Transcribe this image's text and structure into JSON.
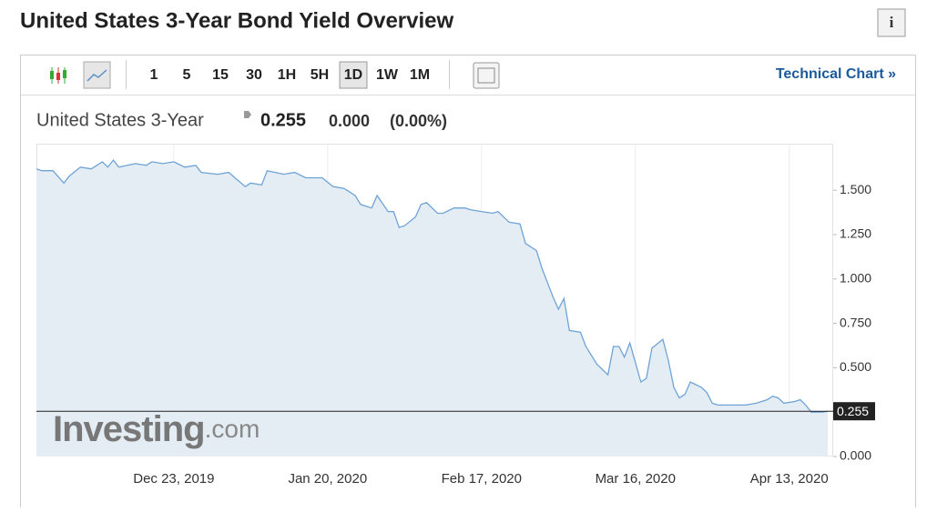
{
  "page": {
    "title": "United States 3-Year Bond Yield Overview",
    "info": "i",
    "intervals": [
      "1",
      "5",
      "15",
      "30",
      "1H",
      "5H",
      "1D",
      "1W",
      "1M"
    ],
    "active_interval": "1D",
    "link": "Technical Chart »",
    "watermark_brand": "Investing",
    "watermark_suffix": ".com"
  },
  "quote": {
    "name": "United States 3-Year",
    "price": "0.255",
    "change": "0.000",
    "change_pct": "(0.00%)"
  },
  "chart_data": {
    "type": "area-line",
    "x": [
      "2019-11-28",
      "2019-11-29",
      "2019-12-01",
      "2019-12-03",
      "2019-12-04",
      "2019-12-06",
      "2019-12-08",
      "2019-12-10",
      "2019-12-11",
      "2019-12-12",
      "2019-12-13",
      "2019-12-16",
      "2019-12-18",
      "2019-12-19",
      "2019-12-21",
      "2019-12-23",
      "2019-12-25",
      "2019-12-27",
      "2019-12-28",
      "2019-12-31",
      "2020-01-02",
      "2020-01-05",
      "2020-01-06",
      "2020-01-08",
      "2020-01-09",
      "2020-01-12",
      "2020-01-14",
      "2020-01-16",
      "2020-01-19",
      "2020-01-21",
      "2020-01-23",
      "2020-01-25",
      "2020-01-26",
      "2020-01-28",
      "2020-01-29",
      "2020-01-31",
      "2020-02-01",
      "2020-02-02",
      "2020-02-03",
      "2020-02-05",
      "2020-02-06",
      "2020-02-07",
      "2020-02-09",
      "2020-02-10",
      "2020-02-12",
      "2020-02-14",
      "2020-02-15",
      "2020-02-17",
      "2020-02-19",
      "2020-02-20",
      "2020-02-22",
      "2020-02-24",
      "2020-02-25",
      "2020-02-27",
      "2020-02-28",
      "2020-03-01",
      "2020-03-02",
      "2020-03-03",
      "2020-03-04",
      "2020-03-06",
      "2020-03-07",
      "2020-03-09",
      "2020-03-11",
      "2020-03-12",
      "2020-03-13",
      "2020-03-14",
      "2020-03-15",
      "2020-03-17",
      "2020-03-18",
      "2020-03-19",
      "2020-03-21",
      "2020-03-22",
      "2020-03-23",
      "2020-03-24",
      "2020-03-25",
      "2020-03-26",
      "2020-03-28",
      "2020-03-29",
      "2020-03-30",
      "2020-03-31",
      "2020-04-02",
      "2020-04-05",
      "2020-04-07",
      "2020-04-09",
      "2020-04-10",
      "2020-04-11",
      "2020-04-12",
      "2020-04-14",
      "2020-04-15",
      "2020-04-16",
      "2020-04-17",
      "2020-04-19",
      "2020-04-20"
    ],
    "values": [
      1.62,
      1.61,
      1.61,
      1.54,
      1.58,
      1.63,
      1.62,
      1.66,
      1.63,
      1.67,
      1.63,
      1.65,
      1.64,
      1.66,
      1.65,
      1.66,
      1.63,
      1.64,
      1.6,
      1.59,
      1.6,
      1.52,
      1.54,
      1.53,
      1.61,
      1.59,
      1.6,
      1.57,
      1.57,
      1.52,
      1.51,
      1.47,
      1.42,
      1.4,
      1.47,
      1.38,
      1.38,
      1.29,
      1.3,
      1.35,
      1.42,
      1.43,
      1.37,
      1.37,
      1.4,
      1.4,
      1.39,
      1.38,
      1.37,
      1.38,
      1.32,
      1.31,
      1.2,
      1.16,
      1.06,
      0.9,
      0.83,
      0.89,
      0.71,
      0.7,
      0.62,
      0.52,
      0.46,
      0.62,
      0.62,
      0.56,
      0.64,
      0.42,
      0.44,
      0.61,
      0.66,
      0.54,
      0.39,
      0.33,
      0.35,
      0.42,
      0.39,
      0.36,
      0.3,
      0.29,
      0.29,
      0.29,
      0.3,
      0.32,
      0.34,
      0.33,
      0.3,
      0.31,
      0.32,
      0.29,
      0.25,
      0.25,
      0.255
    ],
    "color": "#6fa3d6",
    "fill": "#e4edf4",
    "current_value": 0.255,
    "xlim": [
      "2019-11-28",
      "2020-04-21"
    ],
    "xticks": [
      {
        "value": "2019-12-23",
        "label": "Dec 23, 2019"
      },
      {
        "value": "2020-01-20",
        "label": "Jan 20, 2020"
      },
      {
        "value": "2020-02-17",
        "label": "Feb 17, 2020"
      },
      {
        "value": "2020-03-16",
        "label": "Mar 16, 2020"
      },
      {
        "value": "2020-04-13",
        "label": "Apr 13, 2020"
      }
    ],
    "ylim": [
      0,
      1.762
    ],
    "yticks": [
      {
        "value": 0,
        "label": "0.000"
      },
      {
        "value": 0.5,
        "label": "0.500"
      },
      {
        "value": 0.75,
        "label": "0.750"
      },
      {
        "value": 1,
        "label": "1.000"
      },
      {
        "value": 1.25,
        "label": "1.250"
      },
      {
        "value": 1.5,
        "label": "1.500"
      }
    ],
    "grid": true
  }
}
